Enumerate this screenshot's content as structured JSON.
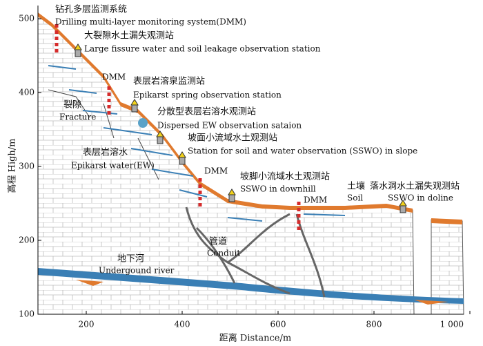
{
  "axes": {
    "y_title": "高程 High/m",
    "x_title": "距离 Distance/m",
    "y_ticks": [
      "100",
      "200",
      "300",
      "400",
      "500"
    ],
    "x_ticks": [
      "200",
      "400",
      "600",
      "800",
      "1 000"
    ]
  },
  "labels": [
    {
      "cn": "钻孔多层监测系统",
      "en": "Drilling multi-layer monitoring system(DMM)"
    },
    {
      "cn": "大裂隙水土漏失观测站",
      "en": "Large fissure water and soil leakage observation station"
    },
    {
      "cn": "表层岩溶泉监测站",
      "en": "Epikarst spring observation station"
    },
    {
      "cn": "裂隙",
      "en": "Fracture"
    },
    {
      "cn": "分散型表层岩溶水观测站",
      "en": "Dispersed  EW observation sataion"
    },
    {
      "cn": "坡面小流域水土观测站",
      "en": "Station for soil and water observation (SSWO) in slope"
    },
    {
      "cn": "表层岩溶水",
      "en": "Epikarst water(EW)"
    },
    {
      "cn": "坡脚小流域水土观测站",
      "en": "SSWO in downhill"
    },
    {
      "cn": "土壤",
      "en": "Soil"
    },
    {
      "cn": "落水洞水土漏失观测站",
      "en": "SSWO in doline"
    },
    {
      "cn": "管道",
      "en": "Conduit"
    },
    {
      "cn": "地下河",
      "en": "Undergound river"
    }
  ],
  "dmm": [
    "DMM",
    "DMM",
    "DMM"
  ]
}
